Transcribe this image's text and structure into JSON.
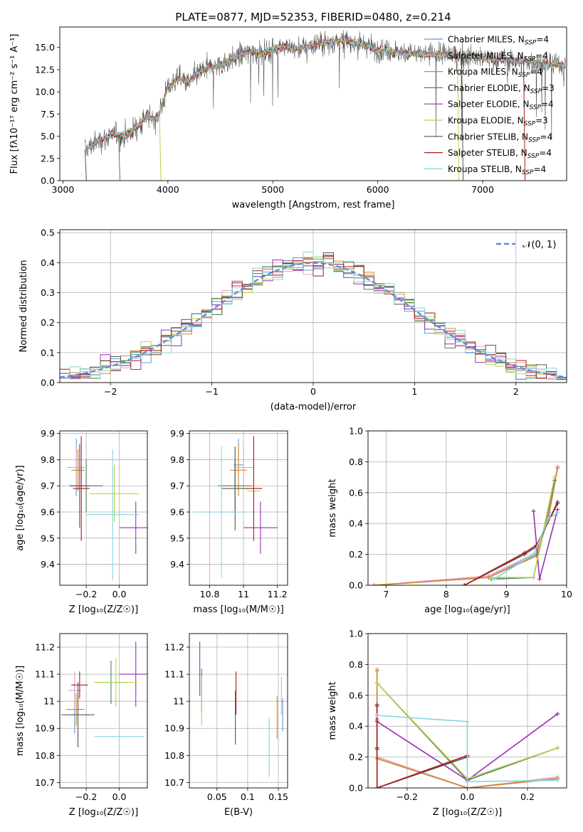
{
  "title": "PLATE=0877, MJD=52353, FIBERID=0480, z=0.214",
  "models": [
    {
      "name": "Chabrier MILES",
      "nssp": "4",
      "color": "#5b9bd5"
    },
    {
      "name": "Salpeter MILES",
      "nssp": "4",
      "color": "#e8a0b8"
    },
    {
      "name": "Kroupa MILES",
      "nssp": "4",
      "color": "#d2872a"
    },
    {
      "name": "Chabrier ELODIE",
      "nssp": "3",
      "color": "#4f7f5f"
    },
    {
      "name": "Salpeter ELODIE",
      "nssp": "4",
      "color": "#9a2fb0"
    },
    {
      "name": "Kroupa ELODIE",
      "nssp": "3",
      "color": "#b9d44a"
    },
    {
      "name": "Chabrier STELIB",
      "nssp": "4",
      "color": "#555555"
    },
    {
      "name": "Salpeter STELIB",
      "nssp": "4",
      "color": "#b01818"
    },
    {
      "name": "Kroupa STELIB",
      "nssp": "4",
      "color": "#86d5dd"
    }
  ],
  "nssp_label": "N",
  "nssp_sub": "SSP",
  "chart_data": [
    {
      "id": "spectrum",
      "type": "line",
      "xlabel": "wavelength [Angstrom, rest frame]",
      "ylabel": "Flux [fλ10⁻¹⁷ erg cm⁻² s⁻¹ A⁻¹]",
      "xlim": [
        2970,
        7800
      ],
      "ylim": [
        0,
        17.3
      ],
      "xticks": [
        3000,
        4000,
        5000,
        6000,
        7000
      ],
      "yticks": [
        0.0,
        2.5,
        5.0,
        7.5,
        10.0,
        12.5,
        15.0
      ],
      "grid": false,
      "legend": "right",
      "data_x": [
        3220,
        3300,
        3400,
        3500,
        3600,
        3700,
        3800,
        3900,
        4000,
        4100,
        4200,
        4300,
        4400,
        4500,
        4600,
        4700,
        4800,
        4900,
        5000,
        5100,
        5200,
        5300,
        5400,
        5500,
        5600,
        5700,
        5800,
        5900,
        6000,
        6200,
        6400,
        6600,
        6800,
        7000,
        7200,
        7400,
        7600,
        7780
      ],
      "data_y": [
        3.5,
        4.2,
        4.8,
        5.2,
        5.0,
        6.0,
        7.2,
        7.0,
        10.5,
        11.5,
        11.0,
        12.2,
        12.8,
        13.0,
        13.6,
        14.2,
        14.6,
        14.3,
        14.8,
        15.2,
        14.8,
        15.0,
        15.3,
        15.6,
        15.7,
        15.8,
        15.5,
        15.2,
        14.7,
        14.5,
        14.2,
        14.3,
        14.0,
        13.8,
        13.6,
        13.4,
        13.2,
        13.0
      ],
      "cutoffs": [
        [
          3530,
          3
        ],
        [
          3920,
          5
        ],
        [
          6800,
          6
        ],
        [
          7390,
          7
        ],
        [
          6760,
          5
        ],
        [
          3210,
          6
        ]
      ]
    },
    {
      "id": "residuals",
      "type": "area",
      "xlabel": "(data-model)/error",
      "ylabel": "Normed distribution",
      "xlim": [
        -2.5,
        2.5
      ],
      "ylim": [
        0,
        0.51
      ],
      "xticks": [
        -2,
        -1,
        0,
        1,
        2
      ],
      "xtick_labels": [
        "−2",
        "−1",
        "0",
        "1",
        "2"
      ],
      "yticks": [
        0.0,
        0.1,
        0.2,
        0.3,
        0.4,
        0.5
      ],
      "grid": true,
      "legend": "top-right",
      "gaussian_label": "𝒩(0, 1)",
      "gaussian_color": "#5b8fd9",
      "bin_width": 0.1
    },
    {
      "id": "z-age",
      "type": "scatter",
      "xlabel": "Z [log₁₀(Z/Z☉)]",
      "ylabel": "age  [log₁₀(age/yr)]",
      "xlim": [
        -0.36,
        0.17
      ],
      "ylim": [
        9.32,
        9.91
      ],
      "xticks": [
        -0.2,
        0.0
      ],
      "xtick_labels": [
        "−0.2",
        "0.0"
      ],
      "yticks": [
        9.4,
        9.5,
        9.6,
        9.7,
        9.8,
        9.9
      ],
      "grid": true,
      "points": [
        {
          "m": 0,
          "x": -0.26,
          "xe": 0.05,
          "y": 9.77,
          "ye": 0.11
        },
        {
          "m": 1,
          "x": -0.26,
          "xe": 0.04,
          "y": 9.77,
          "ye": 0.08
        },
        {
          "m": 2,
          "x": -0.25,
          "xe": 0.04,
          "y": 9.76,
          "ye": 0.08
        },
        {
          "m": 3,
          "x": -0.2,
          "xe": 0.1,
          "y": 9.7,
          "ye": 0.1
        },
        {
          "m": 4,
          "x": 0.1,
          "xe": 0.1,
          "y": 9.54,
          "ye": 0.1
        },
        {
          "m": 5,
          "x": -0.03,
          "xe": 0.15,
          "y": 9.67,
          "ye": 0.11
        },
        {
          "m": 6,
          "x": -0.24,
          "xe": 0.06,
          "y": 9.7,
          "ye": 0.16
        },
        {
          "m": 7,
          "x": -0.23,
          "xe": 0.05,
          "y": 9.69,
          "ye": 0.2
        },
        {
          "m": 8,
          "x": -0.04,
          "xe": 0.16,
          "y": 9.59,
          "ye": 0.25
        }
      ]
    },
    {
      "id": "mass-age",
      "type": "scatter",
      "xlabel": "mass [log₁₀(M/M☉)]",
      "ylabel": "",
      "xlim": [
        10.68,
        11.26
      ],
      "ylim": [
        9.32,
        9.91
      ],
      "xticks": [
        10.8,
        11.0,
        11.2
      ],
      "yticks": [
        9.4,
        9.5,
        9.6,
        9.7,
        9.8,
        9.9
      ],
      "grid": true,
      "points": [
        {
          "m": 0,
          "x": 10.97,
          "xe": 0.03,
          "y": 9.78,
          "ye": 0.1
        },
        {
          "m": 1,
          "x": 11.0,
          "xe": 0.06,
          "y": 9.77,
          "ye": 0.08
        },
        {
          "m": 2,
          "x": 10.97,
          "xe": 0.05,
          "y": 9.76,
          "ye": 0.1
        },
        {
          "m": 3,
          "x": 10.95,
          "xe": 0.1,
          "y": 9.7,
          "ye": 0.1
        },
        {
          "m": 4,
          "x": 11.1,
          "xe": 0.1,
          "y": 9.54,
          "ye": 0.1
        },
        {
          "m": 5,
          "x": 11.06,
          "xe": 0.04,
          "y": 9.68,
          "ye": 0.11
        },
        {
          "m": 6,
          "x": 10.95,
          "xe": 0.08,
          "y": 9.69,
          "ye": 0.16
        },
        {
          "m": 7,
          "x": 11.06,
          "xe": 0.05,
          "y": 9.69,
          "ye": 0.2
        },
        {
          "m": 8,
          "x": 10.87,
          "xe": 0.14,
          "y": 9.6,
          "ye": 0.25
        }
      ]
    },
    {
      "id": "age-weight",
      "type": "line",
      "xlabel": "age  [log₁₀(age/yr)]",
      "ylabel": "mass weight",
      "xlim": [
        6.7,
        10.0
      ],
      "ylim": [
        0,
        1.0
      ],
      "xticks": [
        7,
        8,
        9,
        10
      ],
      "yticks": [
        0.0,
        0.2,
        0.4,
        0.6,
        0.8,
        1.0
      ],
      "grid": true,
      "series": [
        {
          "m": 0,
          "x": [
            6.8,
            8.7,
            9.5,
            9.7,
            9.85
          ],
          "y": [
            0.0,
            0.05,
            0.2,
            0.47,
            0.76
          ]
        },
        {
          "m": 1,
          "x": [
            6.8,
            8.7,
            9.5,
            9.7,
            9.85
          ],
          "y": [
            0.0,
            0.06,
            0.21,
            0.45,
            0.77
          ]
        },
        {
          "m": 2,
          "x": [
            6.8,
            8.7,
            9.5,
            9.7,
            9.85
          ],
          "y": [
            0.0,
            0.05,
            0.19,
            0.44,
            0.76
          ]
        },
        {
          "m": 3,
          "x": [
            8.75,
            9.45,
            9.8
          ],
          "y": [
            0.04,
            0.05,
            0.68
          ]
        },
        {
          "m": 4,
          "x": [
            9.45,
            9.55,
            9.85
          ],
          "y": [
            0.48,
            0.04,
            0.49
          ]
        },
        {
          "m": 5,
          "x": [
            8.75,
            9.45,
            9.8
          ],
          "y": [
            0.05,
            0.05,
            0.7
          ]
        },
        {
          "m": 6,
          "x": [
            8.3,
            9.3,
            9.5,
            9.85
          ],
          "y": [
            0.0,
            0.2,
            0.25,
            0.54
          ]
        },
        {
          "m": 7,
          "x": [
            8.3,
            9.3,
            9.5,
            9.85
          ],
          "y": [
            0.0,
            0.21,
            0.26,
            0.53
          ]
        },
        {
          "m": 8,
          "x": [
            8.8,
            9.45,
            9.7,
            9.85
          ],
          "y": [
            0.04,
            0.2,
            0.43,
            0.47
          ]
        }
      ]
    },
    {
      "id": "z-mass",
      "type": "scatter",
      "xlabel": "Z [log₁₀(Z/Z☉)]",
      "ylabel": "mass [log₁₀(M/M☉)]",
      "xlim": [
        -0.36,
        0.17
      ],
      "ylim": [
        10.68,
        11.25
      ],
      "xticks": [
        -0.2,
        0.0
      ],
      "xtick_labels": [
        "−0.2",
        "0.0"
      ],
      "yticks": [
        10.7,
        10.8,
        10.9,
        11.0,
        11.1,
        11.2
      ],
      "grid": true,
      "points": [
        {
          "m": 0,
          "x": -0.27,
          "xe": 0.05,
          "y": 10.97,
          "ye": 0.09
        },
        {
          "m": 1,
          "x": -0.27,
          "xe": 0.04,
          "y": 11.04,
          "ye": 0.07
        },
        {
          "m": 2,
          "x": -0.26,
          "xe": 0.05,
          "y": 10.97,
          "ye": 0.06
        },
        {
          "m": 3,
          "x": -0.05,
          "xe": 0.1,
          "y": 11.07,
          "ye": 0.08
        },
        {
          "m": 4,
          "x": 0.1,
          "xe": 0.1,
          "y": 11.1,
          "ye": 0.12
        },
        {
          "m": 5,
          "x": -0.02,
          "xe": 0.13,
          "y": 11.07,
          "ye": 0.09
        },
        {
          "m": 6,
          "x": -0.25,
          "xe": 0.1,
          "y": 10.95,
          "ye": 0.12
        },
        {
          "m": 7,
          "x": -0.24,
          "xe": 0.05,
          "y": 11.06,
          "ye": 0.05
        },
        {
          "m": 8,
          "x": 0.0,
          "xe": 0.15,
          "y": 10.87,
          "ye": 0.17
        }
      ]
    },
    {
      "id": "ebv-mass",
      "type": "scatter",
      "xlabel": "E(B-V)",
      "ylabel": "",
      "xlim": [
        0.005,
        0.165
      ],
      "ylim": [
        10.68,
        11.25
      ],
      "xticks": [
        0.05,
        0.1,
        0.15
      ],
      "yticks": [
        10.7,
        10.8,
        10.9,
        11.0,
        11.1,
        11.2
      ],
      "grid": true,
      "points": [
        {
          "m": 0,
          "x": 0.157,
          "xe": 0,
          "y": 10.95,
          "ye": 0.06
        },
        {
          "m": 1,
          "x": 0.155,
          "xe": 0,
          "y": 11.02,
          "ye": 0.07
        },
        {
          "m": 2,
          "x": 0.148,
          "xe": 0,
          "y": 10.94,
          "ye": 0.08
        },
        {
          "m": 3,
          "x": 0.025,
          "xe": 0,
          "y": 11.04,
          "ye": 0.08
        },
        {
          "m": 4,
          "x": 0.022,
          "xe": 0,
          "y": 11.12,
          "ye": 0.1
        },
        {
          "m": 5,
          "x": 0.025,
          "xe": 0,
          "y": 11.0,
          "ye": 0.09
        },
        {
          "m": 6,
          "x": 0.08,
          "xe": 0,
          "y": 10.94,
          "ye": 0.1
        },
        {
          "m": 7,
          "x": 0.081,
          "xe": 0,
          "y": 11.03,
          "ye": 0.08
        },
        {
          "m": 8,
          "x": 0.135,
          "xe": 0,
          "y": 10.83,
          "ye": 0.11
        }
      ]
    },
    {
      "id": "z-weight",
      "type": "line",
      "xlabel": "Z [log₁₀(Z/Z☉)]",
      "ylabel": "mass weight",
      "xlim": [
        -0.33,
        0.33
      ],
      "ylim": [
        0,
        1.0
      ],
      "xticks": [
        -0.2,
        0.0,
        0.2
      ],
      "xtick_labels": [
        "−0.2",
        "0.0",
        "0.2"
      ],
      "yticks": [
        0.0,
        0.2,
        0.4,
        0.6,
        0.8,
        1.0
      ],
      "grid": true,
      "series": [
        {
          "m": 0,
          "x": [
            -0.3,
            -0.3,
            -0.3,
            0.0,
            0.3
          ],
          "y": [
            0.76,
            0.47,
            0.2,
            0.0,
            0.06
          ]
        },
        {
          "m": 1,
          "x": [
            -0.3,
            -0.3,
            -0.3,
            0.0,
            0.3
          ],
          "y": [
            0.77,
            0.45,
            0.2,
            0.0,
            0.07
          ]
        },
        {
          "m": 2,
          "x": [
            -0.3,
            -0.3,
            -0.3,
            0.0,
            0.3
          ],
          "y": [
            0.76,
            0.44,
            0.19,
            0.0,
            0.06
          ]
        },
        {
          "m": 3,
          "x": [
            -0.3,
            0.0,
            0.3
          ],
          "y": [
            0.68,
            0.05,
            0.26
          ]
        },
        {
          "m": 4,
          "x": [
            -0.3,
            0.0,
            0.3
          ],
          "y": [
            0.43,
            0.05,
            0.48
          ]
        },
        {
          "m": 5,
          "x": [
            -0.3,
            0.0,
            0.3
          ],
          "y": [
            0.68,
            0.06,
            0.26
          ]
        },
        {
          "m": 6,
          "x": [
            -0.3,
            -0.3,
            -0.3,
            0.0
          ],
          "y": [
            0.54,
            0.25,
            0.0,
            0.2
          ]
        },
        {
          "m": 7,
          "x": [
            -0.3,
            -0.3,
            -0.3,
            0.0
          ],
          "y": [
            0.53,
            0.26,
            0.0,
            0.21
          ]
        },
        {
          "m": 8,
          "x": [
            -0.3,
            0.0,
            0.0,
            0.3
          ],
          "y": [
            0.47,
            0.43,
            0.04,
            0.05
          ]
        }
      ]
    }
  ]
}
